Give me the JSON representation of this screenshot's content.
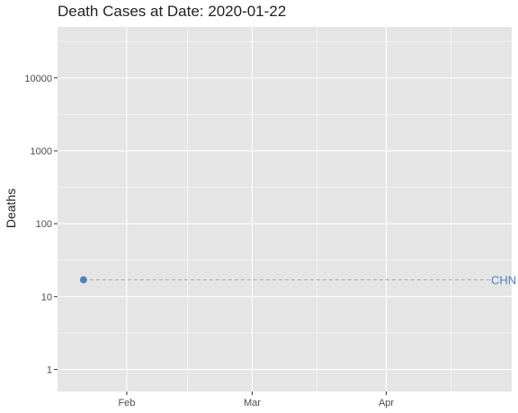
{
  "chart_data": {
    "type": "scatter",
    "title": "Death Cases at Date: 2020-01-22",
    "xlabel": "",
    "ylabel": "Deaths",
    "y_scale": "log10",
    "ylim": [
      0.5,
      50000
    ],
    "y_ticks": [
      1,
      10,
      100,
      1000,
      10000
    ],
    "y_tick_labels": [
      "1",
      "10",
      "100",
      "1000",
      "10000"
    ],
    "xlim": [
      "2020-01-16",
      "2020-04-30"
    ],
    "x_ticks": [
      "2020-02-01",
      "2020-03-01",
      "2020-04-01"
    ],
    "x_tick_labels": [
      "Feb",
      "Mar",
      "Apr"
    ],
    "grid": true,
    "series": [
      {
        "name": "CHN",
        "color": "#4f81bd",
        "points": [
          {
            "x": "2020-01-22",
            "y": 17
          }
        ],
        "reference_line": {
          "y": 17,
          "style": "dashed",
          "color": "#b4b4b4"
        },
        "end_label": "CHN"
      }
    ],
    "colors": {
      "panel_bg": "#e5e5e5",
      "grid": "#ffffff",
      "label_text": "#4f81bd"
    }
  }
}
